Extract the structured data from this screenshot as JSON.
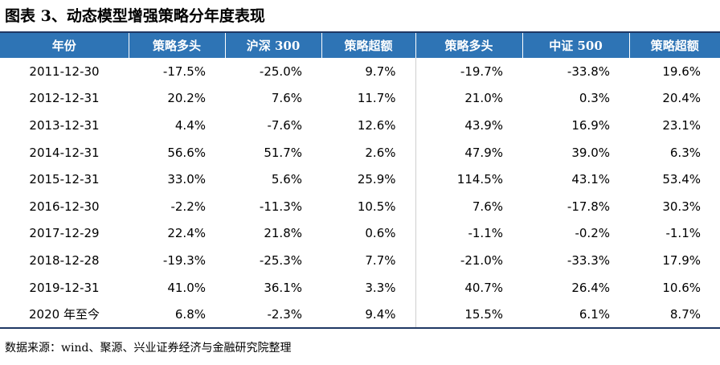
{
  "title": "图表 3、动态模型增强策略分年度表现",
  "headers": [
    "年份",
    "策略多头",
    "沪深 300",
    "策略超额",
    "策略多头",
    "中证 500",
    "策略超额"
  ],
  "rows": [
    [
      "2011-12-30",
      "-17.5%",
      "-25.0%",
      "9.7%",
      "-19.7%",
      "-33.8%",
      "19.6%"
    ],
    [
      "2012-12-31",
      "20.2%",
      "7.6%",
      "11.7%",
      "21.0%",
      "0.3%",
      "20.4%"
    ],
    [
      "2013-12-31",
      "4.4%",
      "-7.6%",
      "12.6%",
      "43.9%",
      "16.9%",
      "23.1%"
    ],
    [
      "2014-12-31",
      "56.6%",
      "51.7%",
      "2.6%",
      "47.9%",
      "39.0%",
      "6.3%"
    ],
    [
      "2015-12-31",
      "33.0%",
      "5.6%",
      "25.9%",
      "114.5%",
      "43.1%",
      "53.4%"
    ],
    [
      "2016-12-30",
      "-2.2%",
      "-11.3%",
      "10.5%",
      "7.6%",
      "-17.8%",
      "30.3%"
    ],
    [
      "2017-12-29",
      "22.4%",
      "21.8%",
      "0.6%",
      "-1.1%",
      "-0.2%",
      "-1.1%"
    ],
    [
      "2018-12-28",
      "-19.3%",
      "-25.3%",
      "7.7%",
      "-21.0%",
      "-33.3%",
      "17.9%"
    ],
    [
      "2019-12-31",
      "41.0%",
      "36.1%",
      "3.3%",
      "40.7%",
      "26.4%",
      "10.6%"
    ],
    [
      "2020 年至今",
      "6.8%",
      "-2.3%",
      "9.4%",
      "15.5%",
      "6.1%",
      "8.7%"
    ]
  ],
  "source": "数据来源：wind、聚源、兴业证券经济与金融研究院整理",
  "colors": {
    "header_bg": "#2e74b5",
    "header_text": "#ffffff",
    "rule": "#1f3864"
  }
}
